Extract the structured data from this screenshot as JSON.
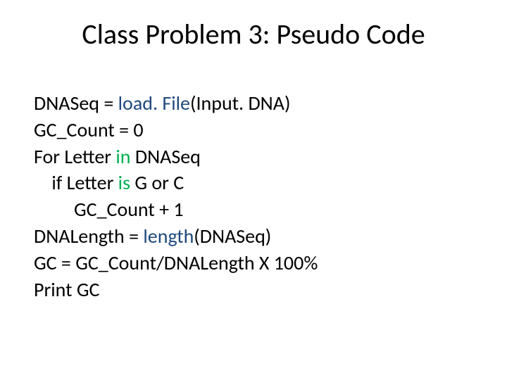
{
  "colors": {
    "background": "#ffffff",
    "text": "#000000",
    "function": "#1f497d",
    "keyword": "#00b050"
  },
  "typography": {
    "title_fontsize": 40,
    "body_fontsize": 28,
    "font_family": "Calibri"
  },
  "title": "Class Problem 3: Pseudo Code",
  "code": {
    "l1_a": "DNASeq = ",
    "l1_fn": "load. File",
    "l1_b": "(Input. DNA)",
    "l2": "GC_Count = 0",
    "l3_a": "For Letter ",
    "l3_kw": "in",
    "l3_b": " DNASeq",
    "l4_a": "    if Letter ",
    "l4_kw": "is",
    "l4_b": " G or C",
    "l5": "         GC_Count + 1",
    "l6_a": "DNALength = ",
    "l6_fn": "length",
    "l6_b": "(DNASeq)",
    "l7": "GC = GC_Count/DNALength X 100%",
    "l8": "Print GC"
  }
}
